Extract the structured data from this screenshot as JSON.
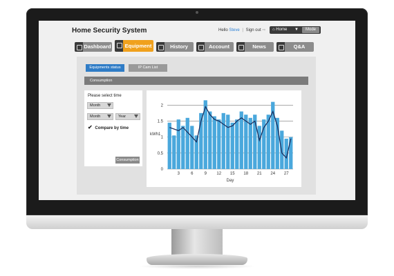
{
  "app": {
    "title": "Home Security System",
    "hello_label": "Hello",
    "user_name": "Steve",
    "sign_out": "Sign out",
    "home_label": "Home",
    "mode_label": "Mode"
  },
  "nav": {
    "tabs": [
      {
        "label": "Dashboard",
        "icon": "user-icon"
      },
      {
        "label": "Equipment",
        "icon": "wrench-icon",
        "active": true
      },
      {
        "label": "History",
        "icon": "calendar-icon"
      },
      {
        "label": "Account",
        "icon": "lock-icon"
      },
      {
        "label": "News",
        "icon": "news-icon"
      },
      {
        "label": "Q&A",
        "icon": "question-icon"
      }
    ]
  },
  "subnav": {
    "equipment_status": "Equipments status",
    "ip_cam_list": "IP Cam List"
  },
  "section": {
    "title": "Consumption"
  },
  "filters": {
    "prompt": "Please select time",
    "select_1": "Month",
    "select_2": "Month",
    "select_3": "Year",
    "compare_label": "Compare by time",
    "compare_checked": true,
    "submit_label": "Consumption"
  },
  "chart_data": {
    "type": "bar",
    "xlabel": "Day",
    "ylabel": "kWh1",
    "ylim": [
      0,
      2.2
    ],
    "yticks": [
      "0",
      "0.5",
      "1",
      "1.5",
      "2"
    ],
    "xticks": [
      "3",
      "6",
      "9",
      "12",
      "15",
      "18",
      "21",
      "24",
      "27"
    ],
    "bar_color": "#4aa8dc",
    "line_color": "#1a3060",
    "x": [
      1,
      2,
      3,
      4,
      5,
      6,
      7,
      8,
      9,
      10,
      11,
      12,
      13,
      14,
      15,
      16,
      17,
      18,
      19,
      20,
      21,
      22,
      23,
      24,
      25,
      26,
      27,
      28
    ],
    "bars": [
      1.45,
      1.05,
      1.55,
      1.35,
      1.6,
      1.35,
      1.05,
      1.75,
      2.15,
      1.8,
      1.65,
      1.55,
      1.75,
      1.7,
      1.45,
      1.55,
      1.8,
      1.7,
      1.6,
      1.7,
      1.35,
      1.55,
      1.7,
      2.1,
      1.6,
      1.2,
      0.95,
      1.0
    ],
    "line": [
      1.3,
      1.25,
      1.2,
      1.3,
      1.15,
      1.0,
      0.85,
      1.5,
      1.95,
      1.7,
      1.55,
      1.5,
      1.4,
      1.3,
      1.35,
      1.5,
      1.6,
      1.5,
      1.4,
      1.5,
      0.9,
      1.3,
      1.5,
      1.8,
      1.35,
      0.5,
      0.35,
      0.95
    ]
  }
}
